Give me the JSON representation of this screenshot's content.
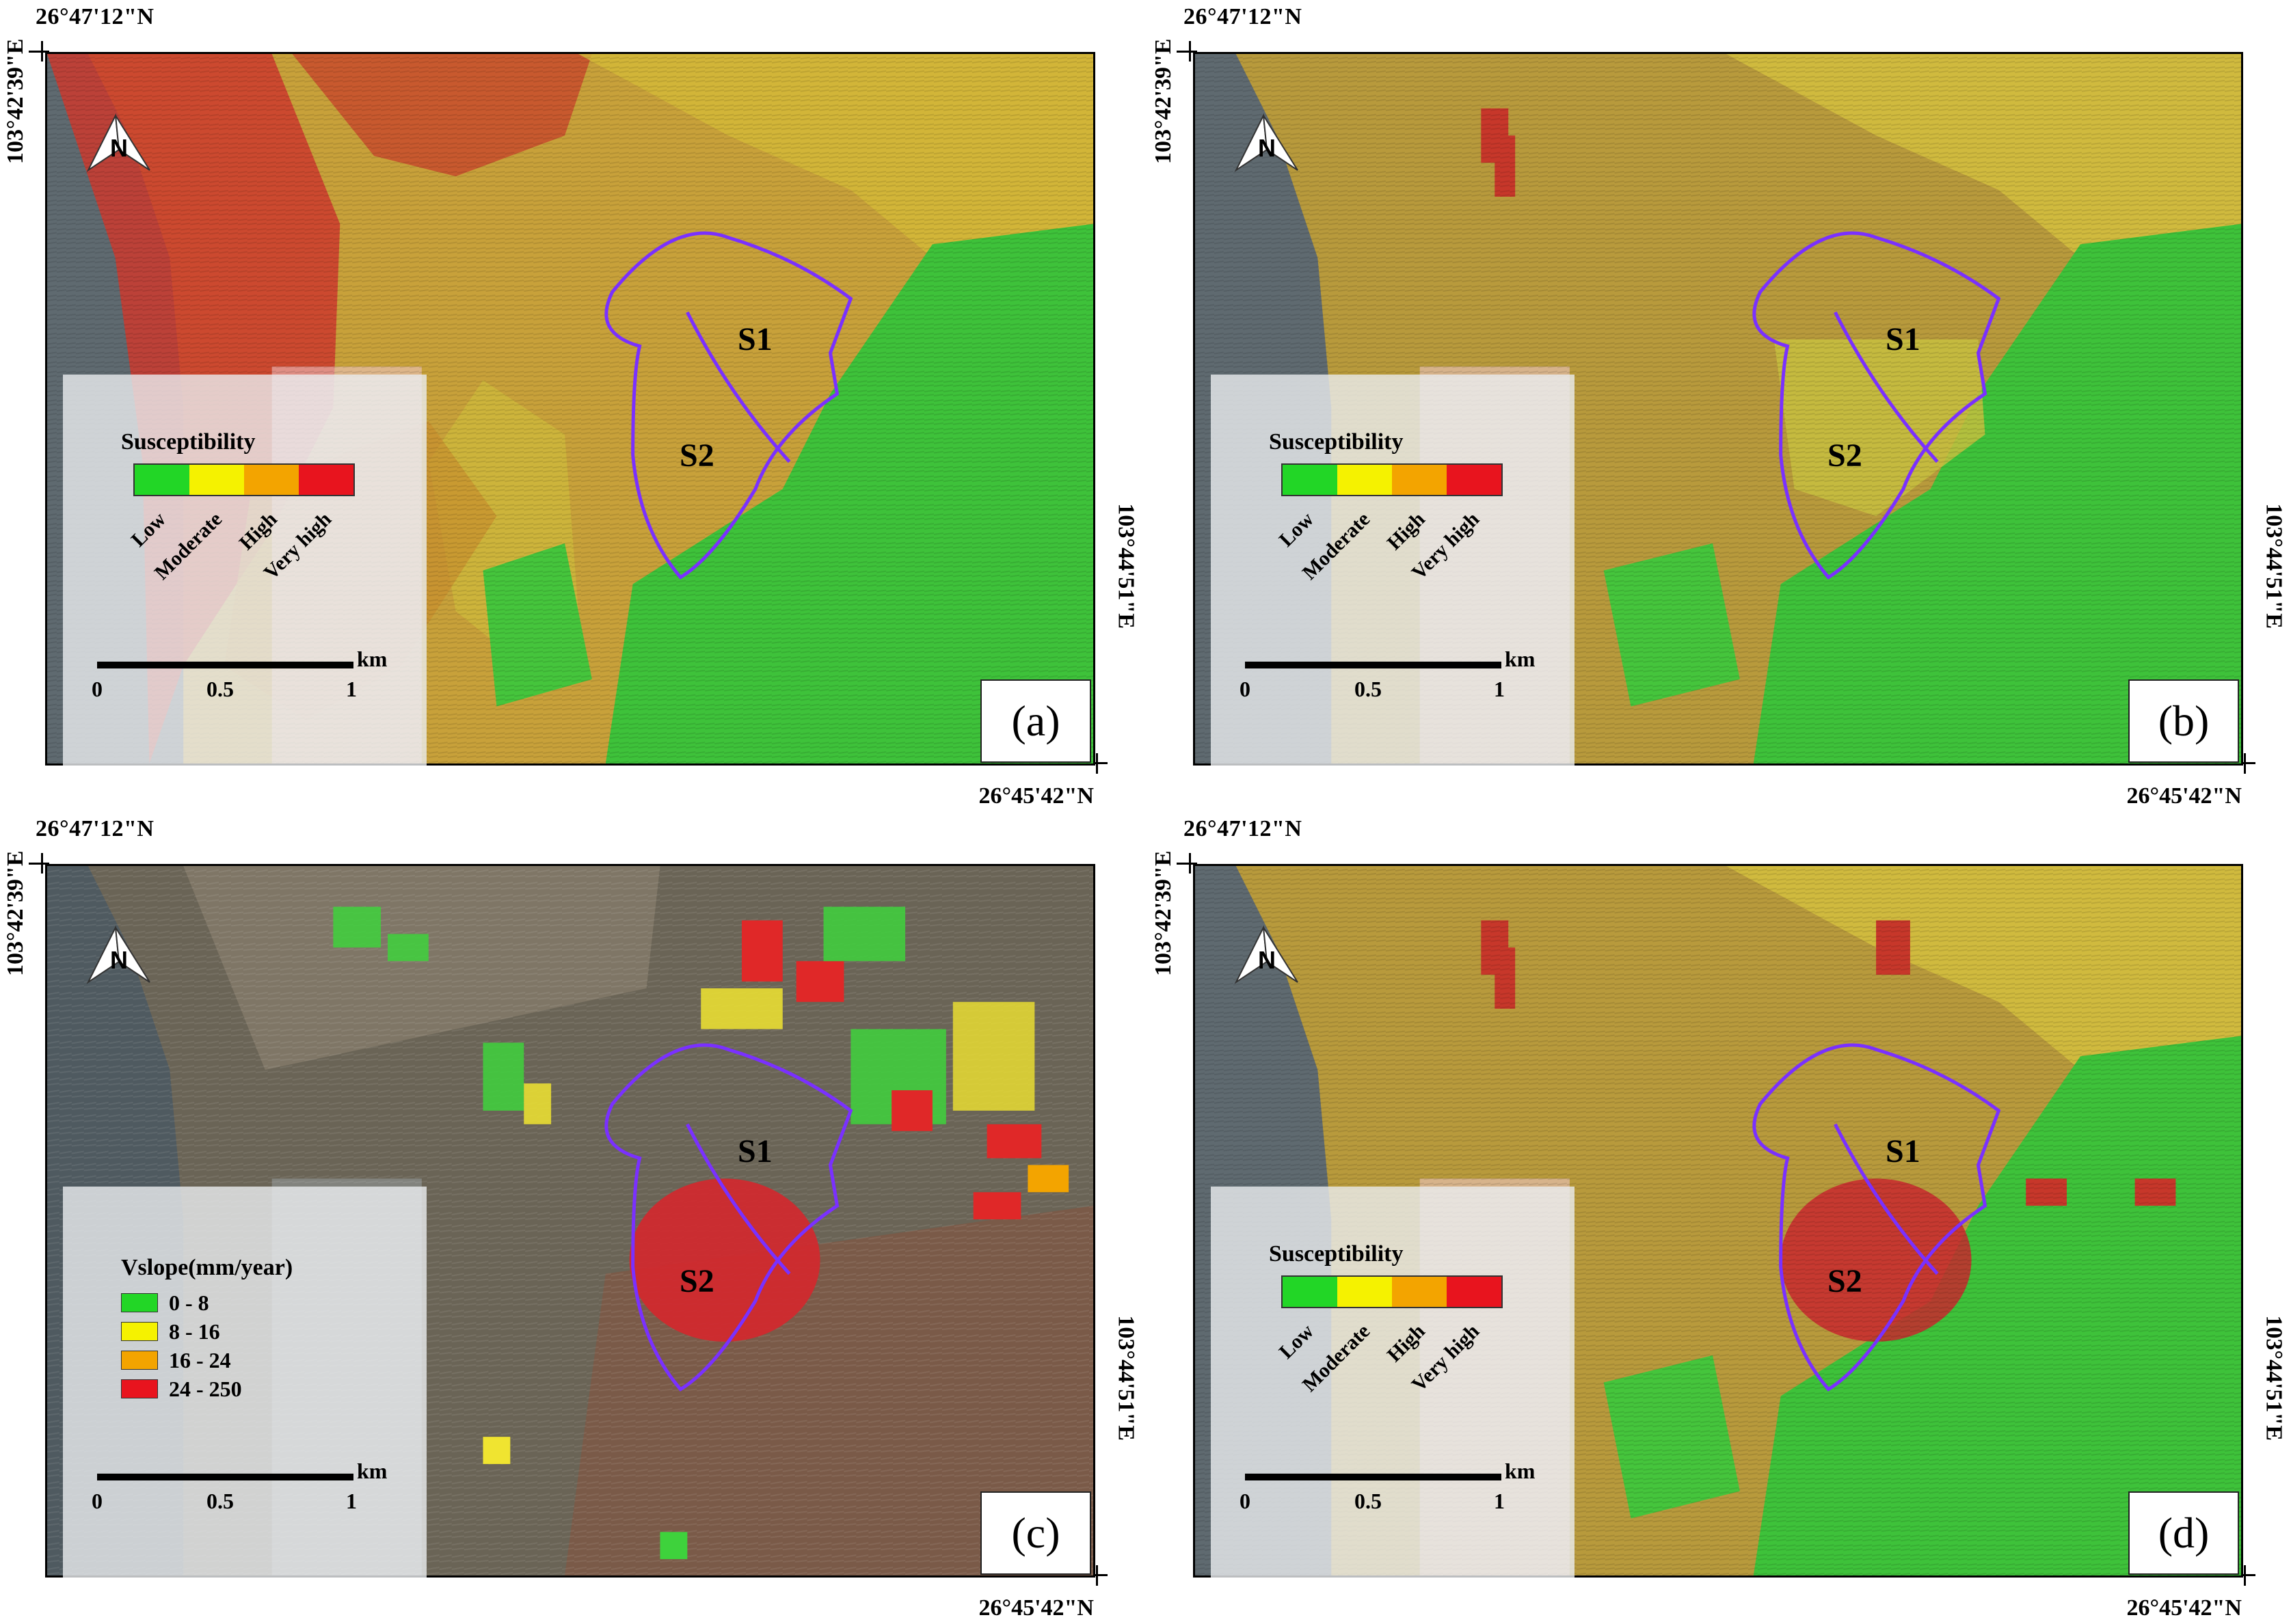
{
  "coords": {
    "top_lat": "26°47'12\"N",
    "left_lon": "103°42'39\"E",
    "bottom_lat": "26°45'42\"N",
    "right_lon": "103°44'51\"E"
  },
  "colors": {
    "low": "#22d626",
    "moderate": "#f5f200",
    "high": "#f3a400",
    "very_high": "#e8141e",
    "boundary": "#7a30ff"
  },
  "sites": {
    "s1": "S1",
    "s2": "S2"
  },
  "susceptibility_legend": {
    "title": "Susceptibility",
    "classes": [
      "Low",
      "Moderate",
      "High",
      "Very high"
    ]
  },
  "vslope_legend": {
    "title": "Vslope(mm/year)",
    "classes": [
      "0 - 8",
      "8 - 16",
      "16 - 24",
      "24 - 250"
    ]
  },
  "scale": {
    "ticks": [
      "0",
      "0.5",
      "1"
    ],
    "unit": "km"
  },
  "panels": [
    {
      "letter": "(a)",
      "type": "susceptibility"
    },
    {
      "letter": "(b)",
      "type": "susceptibility"
    },
    {
      "letter": "(c)",
      "type": "vslope"
    },
    {
      "letter": "(d)",
      "type": "susceptibility"
    }
  ]
}
